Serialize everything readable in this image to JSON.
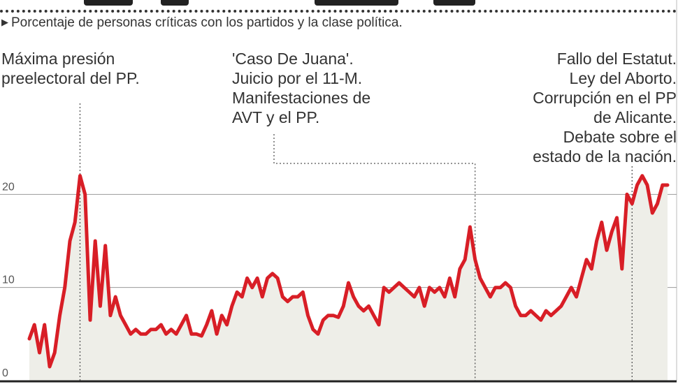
{
  "chart_data": {
    "type": "area",
    "title": "",
    "subtitle": "Porcentaje de personas críticas con los partidos y la clase política.",
    "xlabel": "",
    "ylabel": "",
    "ylim": [
      0,
      22.5
    ],
    "yticks": [
      {
        "value": 0,
        "label": "0"
      },
      {
        "value": 10,
        "label": "10"
      },
      {
        "value": 20,
        "label": "20"
      }
    ],
    "grid": true,
    "line_color": "#d81e26",
    "fill_color": "#eeeee8",
    "series": [
      {
        "values": [
          4.5,
          6,
          3,
          6,
          1.5,
          3,
          7,
          10,
          15,
          17,
          22,
          20,
          6.5,
          15,
          8,
          14.5,
          7,
          9,
          7,
          6,
          5,
          5.5,
          5,
          5,
          5.5,
          5.5,
          6,
          5,
          5.5,
          5,
          6,
          7,
          5,
          5,
          4.8,
          6,
          7.5,
          5,
          7,
          6,
          8,
          9.5,
          9,
          11,
          10,
          11,
          9,
          11,
          11.5,
          11,
          9,
          8.5,
          9,
          9,
          9.5,
          7,
          5.5,
          5,
          6.5,
          7,
          7,
          6.8,
          8,
          10.5,
          9,
          8,
          7.5,
          8,
          7,
          6,
          10,
          9.5,
          10,
          10.5,
          10,
          9.5,
          9,
          10,
          8,
          10,
          9.5,
          10,
          9,
          11,
          9,
          12,
          13,
          16.5,
          13,
          11,
          10,
          9,
          10,
          10,
          10.5,
          10,
          8,
          7,
          7,
          7.5,
          7,
          6.5,
          7.5,
          7,
          7.5,
          8,
          9,
          10,
          9,
          11,
          13,
          12,
          15,
          17,
          14,
          16,
          17.5,
          12,
          20,
          19,
          21,
          22,
          21,
          18,
          19,
          21,
          21
        ]
      }
    ],
    "annotations": [
      {
        "lines": [
          "Máxima presión",
          "preelectoral del PP."
        ],
        "x": 10
      },
      {
        "lines": [
          "'Caso De Juana'.",
          "Juicio por el 11-M.",
          "Manifestaciones de",
          "AVT y el PP."
        ],
        "x": 88
      },
      {
        "lines": [
          "Fallo del Estatut.",
          "Ley del Aborto.",
          "Corrupción en el PP",
          "de Alicante.",
          "Debate sobre el",
          "estado de la nación."
        ],
        "x": 119
      }
    ]
  }
}
